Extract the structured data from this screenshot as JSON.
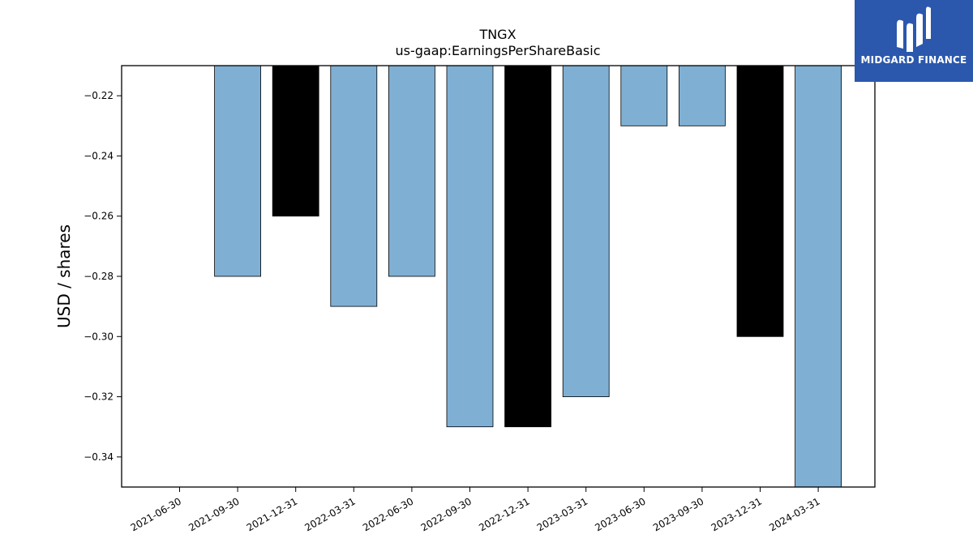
{
  "colors": {
    "primary": "#7fb0d4",
    "highlight": "#000000",
    "logo_bg": "#2b58ad"
  },
  "logo": {
    "text": "MIDGARD FINANCE",
    "icon": "midgard-logo-icon"
  },
  "chart_data": {
    "type": "bar",
    "title": "TNGX",
    "subtitle": "us-gaap:EarningsPerShareBasic",
    "xlabel": "",
    "ylabel": "USD / shares",
    "ylim": [
      -0.35,
      -0.21
    ],
    "yticks": [
      -0.22,
      -0.24,
      -0.26,
      -0.28,
      -0.3,
      -0.32,
      -0.34
    ],
    "ytick_labels": [
      "−0.22",
      "−0.24",
      "−0.26",
      "−0.28",
      "−0.30",
      "−0.32",
      "−0.34"
    ],
    "categories": [
      "2021-06-30",
      "2021-09-30",
      "2021-12-31",
      "2022-03-31",
      "2022-06-30",
      "2022-09-30",
      "2022-12-31",
      "2023-03-31",
      "2023-06-30",
      "2023-09-30",
      "2023-12-31",
      "2024-03-31"
    ],
    "values": [
      null,
      -0.28,
      -0.26,
      -0.29,
      -0.28,
      -0.33,
      -0.33,
      -0.32,
      -0.23,
      -0.23,
      -0.3,
      -0.35
    ],
    "highlighted": [
      false,
      false,
      true,
      false,
      false,
      false,
      true,
      false,
      false,
      false,
      true,
      false
    ],
    "grid": false,
    "legend": "none"
  }
}
